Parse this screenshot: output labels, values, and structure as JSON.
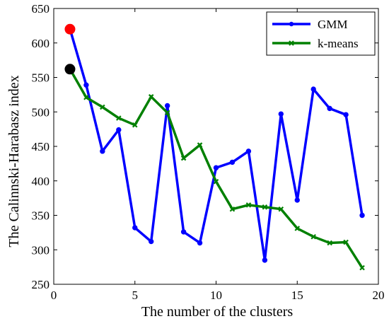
{
  "chart_data": {
    "type": "line",
    "title": "",
    "xlabel": "The number of the clusters",
    "ylabel": "The Calinnski-Harabasz index",
    "xlim": [
      0,
      20
    ],
    "ylim": [
      250,
      650
    ],
    "xticks": [
      0,
      5,
      10,
      15,
      20
    ],
    "yticks": [
      250,
      300,
      350,
      400,
      450,
      500,
      550,
      600,
      650
    ],
    "grid": false,
    "legend_position": "top-right",
    "series": [
      {
        "name": "GMM",
        "color": "#0000ff",
        "marker": "circle",
        "x": [
          1,
          2,
          3,
          4,
          5,
          6,
          7,
          8,
          9,
          10,
          11,
          12,
          13,
          14,
          15,
          16,
          17,
          18,
          19
        ],
        "y": [
          620,
          539,
          443,
          474,
          332,
          312,
          509,
          326,
          310,
          419,
          427,
          443,
          285,
          497,
          372,
          533,
          505,
          496,
          350
        ]
      },
      {
        "name": "k-means",
        "color": "#008000",
        "marker": "x",
        "x": [
          1,
          2,
          3,
          4,
          5,
          6,
          7,
          8,
          9,
          10,
          11,
          12,
          13,
          14,
          15,
          16,
          17,
          18,
          19
        ],
        "y": [
          562,
          521,
          507,
          491,
          481,
          522,
          499,
          433,
          452,
          399,
          359,
          365,
          362,
          359,
          331,
          319,
          310,
          311,
          274
        ]
      }
    ],
    "highlight_points": [
      {
        "x": 1,
        "y": 620,
        "color": "#ff0000"
      },
      {
        "x": 1,
        "y": 562,
        "color": "#000000"
      }
    ]
  }
}
